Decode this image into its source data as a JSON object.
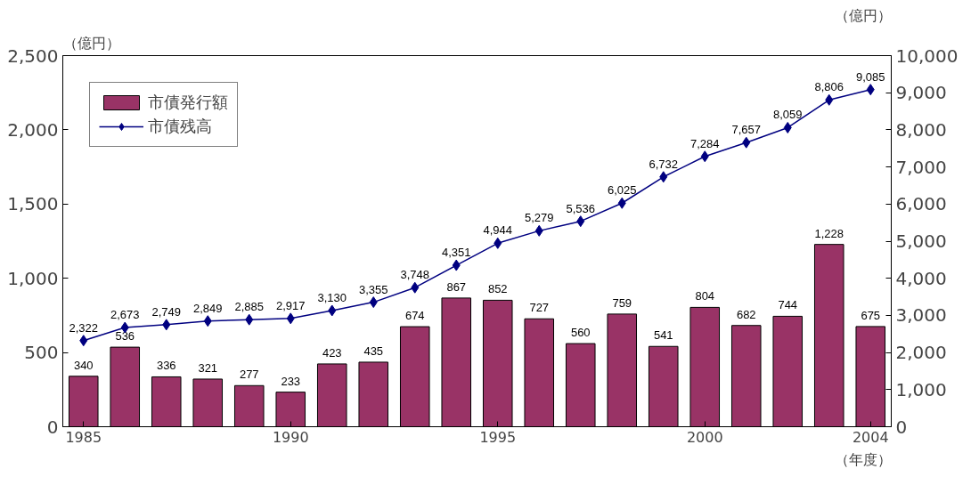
{
  "chart_data": {
    "type": "bar",
    "ylabel": "（億円）",
    "y2label": "（億円）",
    "xlabel": "（年度）",
    "categories": [
      "1985",
      null,
      null,
      null,
      null,
      "1990",
      null,
      null,
      null,
      null,
      "1995",
      null,
      null,
      null,
      null,
      "2000",
      null,
      null,
      null,
      "2004"
    ],
    "series": [
      {
        "name": "市債発行額",
        "color": "#993366",
        "values": [
          340,
          536,
          336,
          321,
          277,
          233,
          423,
          435,
          674,
          867,
          852,
          727,
          560,
          759,
          541,
          804,
          682,
          744,
          1228,
          675
        ],
        "value_labels": [
          "340",
          "536",
          "336",
          "321",
          "277",
          "233",
          "423",
          "435",
          "674",
          "867",
          "852",
          "727",
          "560",
          "759",
          "541",
          "804",
          "682",
          "744",
          "1,228",
          "675"
        ]
      },
      {
        "name": "市債残高",
        "type": "line",
        "axis": "y2",
        "color": "#000080",
        "marker": "diamond",
        "values": [
          2322,
          2673,
          2749,
          2849,
          2885,
          2917,
          3130,
          3355,
          3748,
          4351,
          4944,
          5279,
          5536,
          6025,
          6732,
          7284,
          7657,
          8059,
          8806,
          9085
        ],
        "value_labels": [
          "2,322",
          "2,673",
          "2,749",
          "2,849",
          "2,885",
          "2,917",
          "3,130",
          "3,355",
          "3,748",
          "4,351",
          "4,944",
          "5,279",
          "5,536",
          "6,025",
          "6,732",
          "7,284",
          "7,657",
          "8,059",
          "8,806",
          "9,085"
        ]
      }
    ],
    "ylim": [
      0,
      2500
    ],
    "yticks": [
      0,
      500,
      {
        "value": 1000,
        "label": "1,000"
      },
      {
        "value": 1500,
        "label": "1,500"
      },
      {
        "value": 2000,
        "label": "2,000"
      },
      {
        "value": 2500,
        "label": "2,500"
      }
    ],
    "y2lim": [
      0,
      10000
    ],
    "y2ticks": [
      0,
      {
        "value": 1000,
        "label": "1,000"
      },
      {
        "value": 2000,
        "label": "2,000"
      },
      {
        "value": 3000,
        "label": "3,000"
      },
      {
        "value": 4000,
        "label": "4,000"
      },
      {
        "value": 5000,
        "label": "5,000"
      },
      {
        "value": 6000,
        "label": "6,000"
      },
      {
        "value": 7000,
        "label": "7,000"
      },
      {
        "value": 8000,
        "label": "8,000"
      },
      {
        "value": 9000,
        "label": "9,000"
      },
      {
        "value": 10000,
        "label": "10,000"
      }
    ],
    "grid": false,
    "legend": "top left"
  }
}
